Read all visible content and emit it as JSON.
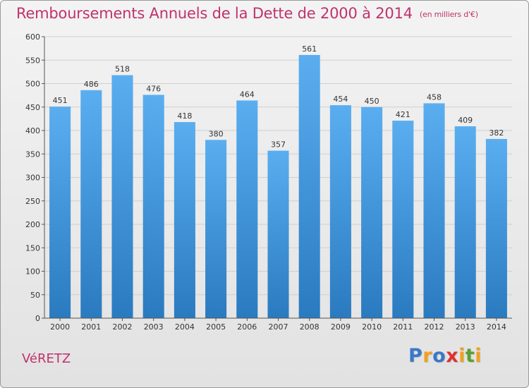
{
  "header": {
    "title": "Remboursements Annuels de la Dette de 2000 à 2014",
    "unit": "(en milliers d'€)"
  },
  "footer": {
    "commune": "VéRETZ",
    "logo_letters": [
      "P",
      "r",
      "o",
      "x",
      "i",
      "t",
      "i"
    ],
    "logo_colors": [
      "#3a78c8",
      "#f0a020",
      "#3a78c8",
      "#e03030",
      "#f0a020",
      "#5aa030",
      "#f0a020"
    ]
  },
  "chart_data": {
    "type": "bar",
    "categories": [
      "2000",
      "2001",
      "2002",
      "2003",
      "2004",
      "2005",
      "2006",
      "2007",
      "2008",
      "2009",
      "2010",
      "2011",
      "2012",
      "2013",
      "2014"
    ],
    "values": [
      451,
      486,
      518,
      476,
      418,
      380,
      464,
      357,
      561,
      454,
      450,
      421,
      458,
      409,
      382
    ],
    "ylim": [
      0,
      600
    ],
    "yticks": [
      0,
      50,
      100,
      150,
      200,
      250,
      300,
      350,
      400,
      450,
      500,
      550,
      600
    ],
    "grid": true,
    "bar_color_top": "#5aaef0",
    "bar_color_bottom": "#2a7ac0"
  }
}
